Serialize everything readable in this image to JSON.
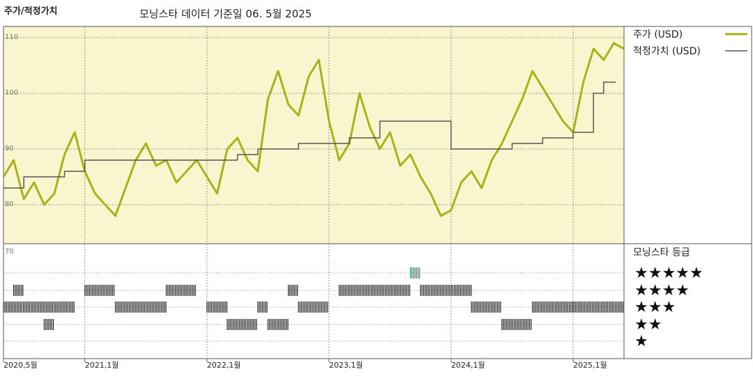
{
  "chart_data": {
    "type": "line",
    "title": "주가/적정가치",
    "subtitle": "모닝스타 데이터 기준일 06. 5월 2025",
    "x_range": [
      "2020-05",
      "2025-06"
    ],
    "x_tick_labels": [
      "2020,5월",
      "2021,1월",
      "2022,1월",
      "2023,1월",
      "2024,1월",
      "2025,1월"
    ],
    "ylim": [
      73,
      112
    ],
    "y_tick_labels": [
      "110",
      "100",
      "90",
      "80",
      "70"
    ],
    "grid": true,
    "legend_position": "right",
    "series": [
      {
        "name": "주가 (USD)",
        "color": "#a8b218",
        "points": [
          [
            "2020-05",
            85
          ],
          [
            "2020-06",
            88
          ],
          [
            "2020-07",
            81
          ],
          [
            "2020-08",
            84
          ],
          [
            "2020-09",
            80
          ],
          [
            "2020-10",
            82
          ],
          [
            "2020-11",
            89
          ],
          [
            "2020-12",
            93
          ],
          [
            "2021-01",
            86
          ],
          [
            "2021-02",
            82
          ],
          [
            "2021-03",
            80
          ],
          [
            "2021-04",
            78
          ],
          [
            "2021-05",
            83
          ],
          [
            "2021-06",
            88
          ],
          [
            "2021-07",
            91
          ],
          [
            "2021-08",
            87
          ],
          [
            "2021-09",
            88
          ],
          [
            "2021-10",
            84
          ],
          [
            "2021-11",
            86
          ],
          [
            "2021-12",
            88
          ],
          [
            "2022-01",
            85
          ],
          [
            "2022-02",
            82
          ],
          [
            "2022-03",
            90
          ],
          [
            "2022-04",
            92
          ],
          [
            "2022-05",
            88
          ],
          [
            "2022-06",
            86
          ],
          [
            "2022-07",
            99
          ],
          [
            "2022-08",
            104
          ],
          [
            "2022-09",
            98
          ],
          [
            "2022-10",
            96
          ],
          [
            "2022-11",
            103
          ],
          [
            "2022-12",
            106
          ],
          [
            "2023-01",
            95
          ],
          [
            "2023-02",
            88
          ],
          [
            "2023-03",
            91
          ],
          [
            "2023-04",
            100
          ],
          [
            "2023-05",
            94
          ],
          [
            "2023-06",
            90
          ],
          [
            "2023-07",
            93
          ],
          [
            "2023-08",
            87
          ],
          [
            "2023-09",
            89
          ],
          [
            "2023-10",
            85
          ],
          [
            "2023-11",
            82
          ],
          [
            "2023-12",
            78
          ],
          [
            "2024-01",
            79
          ],
          [
            "2024-02",
            84
          ],
          [
            "2024-03",
            86
          ],
          [
            "2024-04",
            83
          ],
          [
            "2024-05",
            88
          ],
          [
            "2024-06",
            91
          ],
          [
            "2024-07",
            95
          ],
          [
            "2024-08",
            99
          ],
          [
            "2024-09",
            104
          ],
          [
            "2024-10",
            101
          ],
          [
            "2024-11",
            98
          ],
          [
            "2024-12",
            95
          ],
          [
            "2025-01",
            93
          ],
          [
            "2025-02",
            102
          ],
          [
            "2025-03",
            108
          ],
          [
            "2025-04",
            106
          ],
          [
            "2025-05",
            109
          ],
          [
            "2025-06",
            108
          ]
        ]
      },
      {
        "name": "적정가치 (USD)",
        "color": "#555555",
        "step": true,
        "points": [
          [
            "2020-05",
            83
          ],
          [
            "2020-07",
            85
          ],
          [
            "2020-11",
            86
          ],
          [
            "2021-01",
            88
          ],
          [
            "2022-04",
            89
          ],
          [
            "2022-06",
            90
          ],
          [
            "2022-10",
            91
          ],
          [
            "2023-03",
            92
          ],
          [
            "2023-06",
            95
          ],
          [
            "2024-01",
            90
          ],
          [
            "2024-07",
            91
          ],
          [
            "2024-10",
            92
          ],
          [
            "2025-01",
            93
          ],
          [
            "2025-03",
            100
          ],
          [
            "2025-04",
            102
          ]
        ]
      }
    ],
    "rating_panel": {
      "title": "모닝스타 등급",
      "levels": [
        "★★★★★",
        "★★★★",
        "★★★",
        "★★",
        "★"
      ],
      "periods": [
        {
          "stars": 3,
          "from": "2020-05",
          "to": "2020-12"
        },
        {
          "stars": 4,
          "from": "2020-06",
          "to": "2020-07"
        },
        {
          "stars": 2,
          "from": "2020-09",
          "to": "2020-10"
        },
        {
          "stars": 4,
          "from": "2021-01",
          "to": "2021-04"
        },
        {
          "stars": 3,
          "from": "2021-04",
          "to": "2021-09"
        },
        {
          "stars": 4,
          "from": "2021-09",
          "to": "2021-12"
        },
        {
          "stars": 3,
          "from": "2022-01",
          "to": "2022-03"
        },
        {
          "stars": 2,
          "from": "2022-03",
          "to": "2022-06"
        },
        {
          "stars": 3,
          "from": "2022-06",
          "to": "2022-07"
        },
        {
          "stars": 2,
          "from": "2022-07",
          "to": "2022-09"
        },
        {
          "stars": 3,
          "from": "2022-10",
          "to": "2023-01"
        },
        {
          "stars": 4,
          "from": "2022-09",
          "to": "2022-10"
        },
        {
          "stars": 4,
          "from": "2023-02",
          "to": "2023-09"
        },
        {
          "stars": 5,
          "from": "2023-09",
          "to": "2023-10"
        },
        {
          "stars": 4,
          "from": "2023-10",
          "to": "2024-03"
        },
        {
          "stars": 3,
          "from": "2024-03",
          "to": "2024-06"
        },
        {
          "stars": 2,
          "from": "2024-06",
          "to": "2024-09"
        },
        {
          "stars": 3,
          "from": "2024-09",
          "to": "2025-06"
        }
      ]
    }
  }
}
